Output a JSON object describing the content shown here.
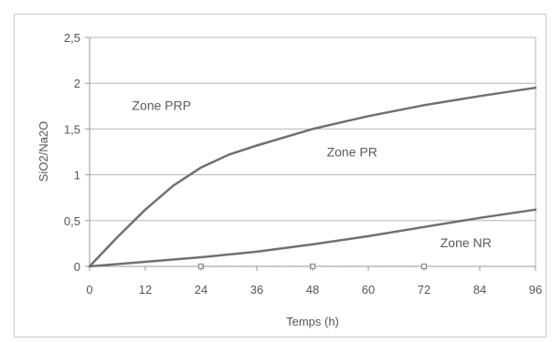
{
  "chart_data": {
    "type": "line",
    "xlabel": "Temps (h)",
    "ylabel": "SiO2/Na2O",
    "xlim": [
      0,
      96
    ],
    "ylim": [
      0,
      2.5
    ],
    "x_ticks": [
      "0",
      "12",
      "24",
      "36",
      "48",
      "60",
      "72",
      "84",
      "96"
    ],
    "y_ticks": [
      "0",
      "0,5",
      "1",
      "1,5",
      "2",
      "2,5"
    ],
    "grid": "horizontal",
    "legend": "none",
    "series": [
      {
        "x": [
          0,
          6,
          12,
          18,
          24,
          30,
          36,
          48,
          60,
          72,
          84,
          96
        ],
        "values": [
          0,
          0.32,
          0.62,
          0.88,
          1.08,
          1.22,
          1.32,
          1.5,
          1.64,
          1.76,
          1.86,
          1.95
        ],
        "color": "#707070"
      },
      {
        "x": [
          0,
          12,
          24,
          36,
          48,
          60,
          72,
          84,
          96
        ],
        "values": [
          0,
          0.05,
          0.1,
          0.16,
          0.24,
          0.33,
          0.43,
          0.53,
          0.62
        ],
        "color": "#707070"
      }
    ],
    "markers": {
      "x": [
        24,
        48,
        72
      ],
      "values": [
        0,
        0,
        0
      ]
    },
    "annotations": [
      {
        "text": "Zone PRP",
        "x": 15.5,
        "y": 1.76
      },
      {
        "text": "Zone PR",
        "x": 56.5,
        "y": 1.25
      },
      {
        "text": "Zone NR",
        "x": 81,
        "y": 0.26
      }
    ]
  },
  "colors": {
    "grid": "#b4b4b4",
    "axis": "#9a9a9a",
    "line": "#707070",
    "marker": "#888888",
    "text": "#555555"
  }
}
